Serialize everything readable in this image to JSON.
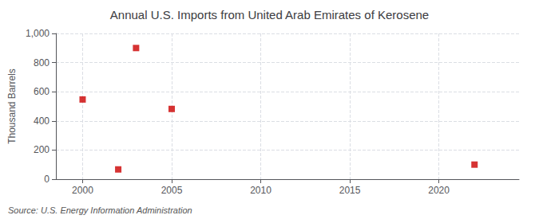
{
  "chart_data": {
    "type": "scatter",
    "title": "Annual U.S. Imports from United Arab Emirates of Kerosene",
    "ylabel": "Thousand Barrels",
    "annotation": "Source: U.S. Energy Information Administration",
    "x": [
      2000,
      2002,
      2003,
      2005,
      2022
    ],
    "values": [
      547,
      67,
      900,
      482,
      100
    ],
    "color": "#cc0000",
    "marker": "square",
    "xlim": [
      1998.5,
      2024.5
    ],
    "ylim": [
      0,
      1000
    ],
    "xticks": [
      2000,
      2005,
      2010,
      2015,
      2020
    ],
    "yticks": [
      0,
      200,
      400,
      600,
      800,
      {
        "value": 1000,
        "label": "1,000"
      }
    ],
    "grid": true
  }
}
